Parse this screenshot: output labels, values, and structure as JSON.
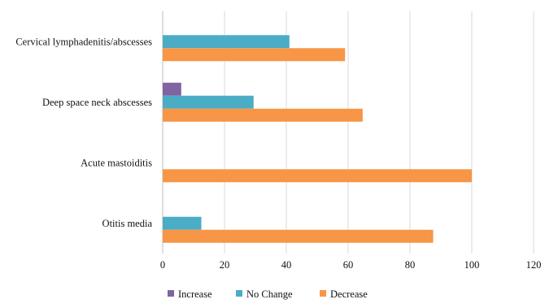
{
  "chart_data": {
    "type": "bar",
    "orientation": "horizontal",
    "title": "",
    "xlabel": "",
    "ylabel": "",
    "xlim": [
      0,
      120
    ],
    "x_ticks": [
      0,
      20,
      40,
      60,
      80,
      100,
      120
    ],
    "grid": true,
    "legend_position": "bottom",
    "categories": [
      "Cervical lymphadenitis/abscesses",
      "Deep space neck abscesses",
      "Acute mastoiditis",
      "Otitis media"
    ],
    "series": [
      {
        "name": "Increase",
        "color": "#8064a2",
        "values": [
          0,
          6,
          0,
          0
        ]
      },
      {
        "name": "No Change",
        "color": "#4bacc6",
        "values": [
          41,
          29.4,
          0,
          12.5
        ]
      },
      {
        "name": "Decrease",
        "color": "#f79646",
        "values": [
          59,
          64.7,
          100,
          87.5
        ]
      }
    ]
  }
}
